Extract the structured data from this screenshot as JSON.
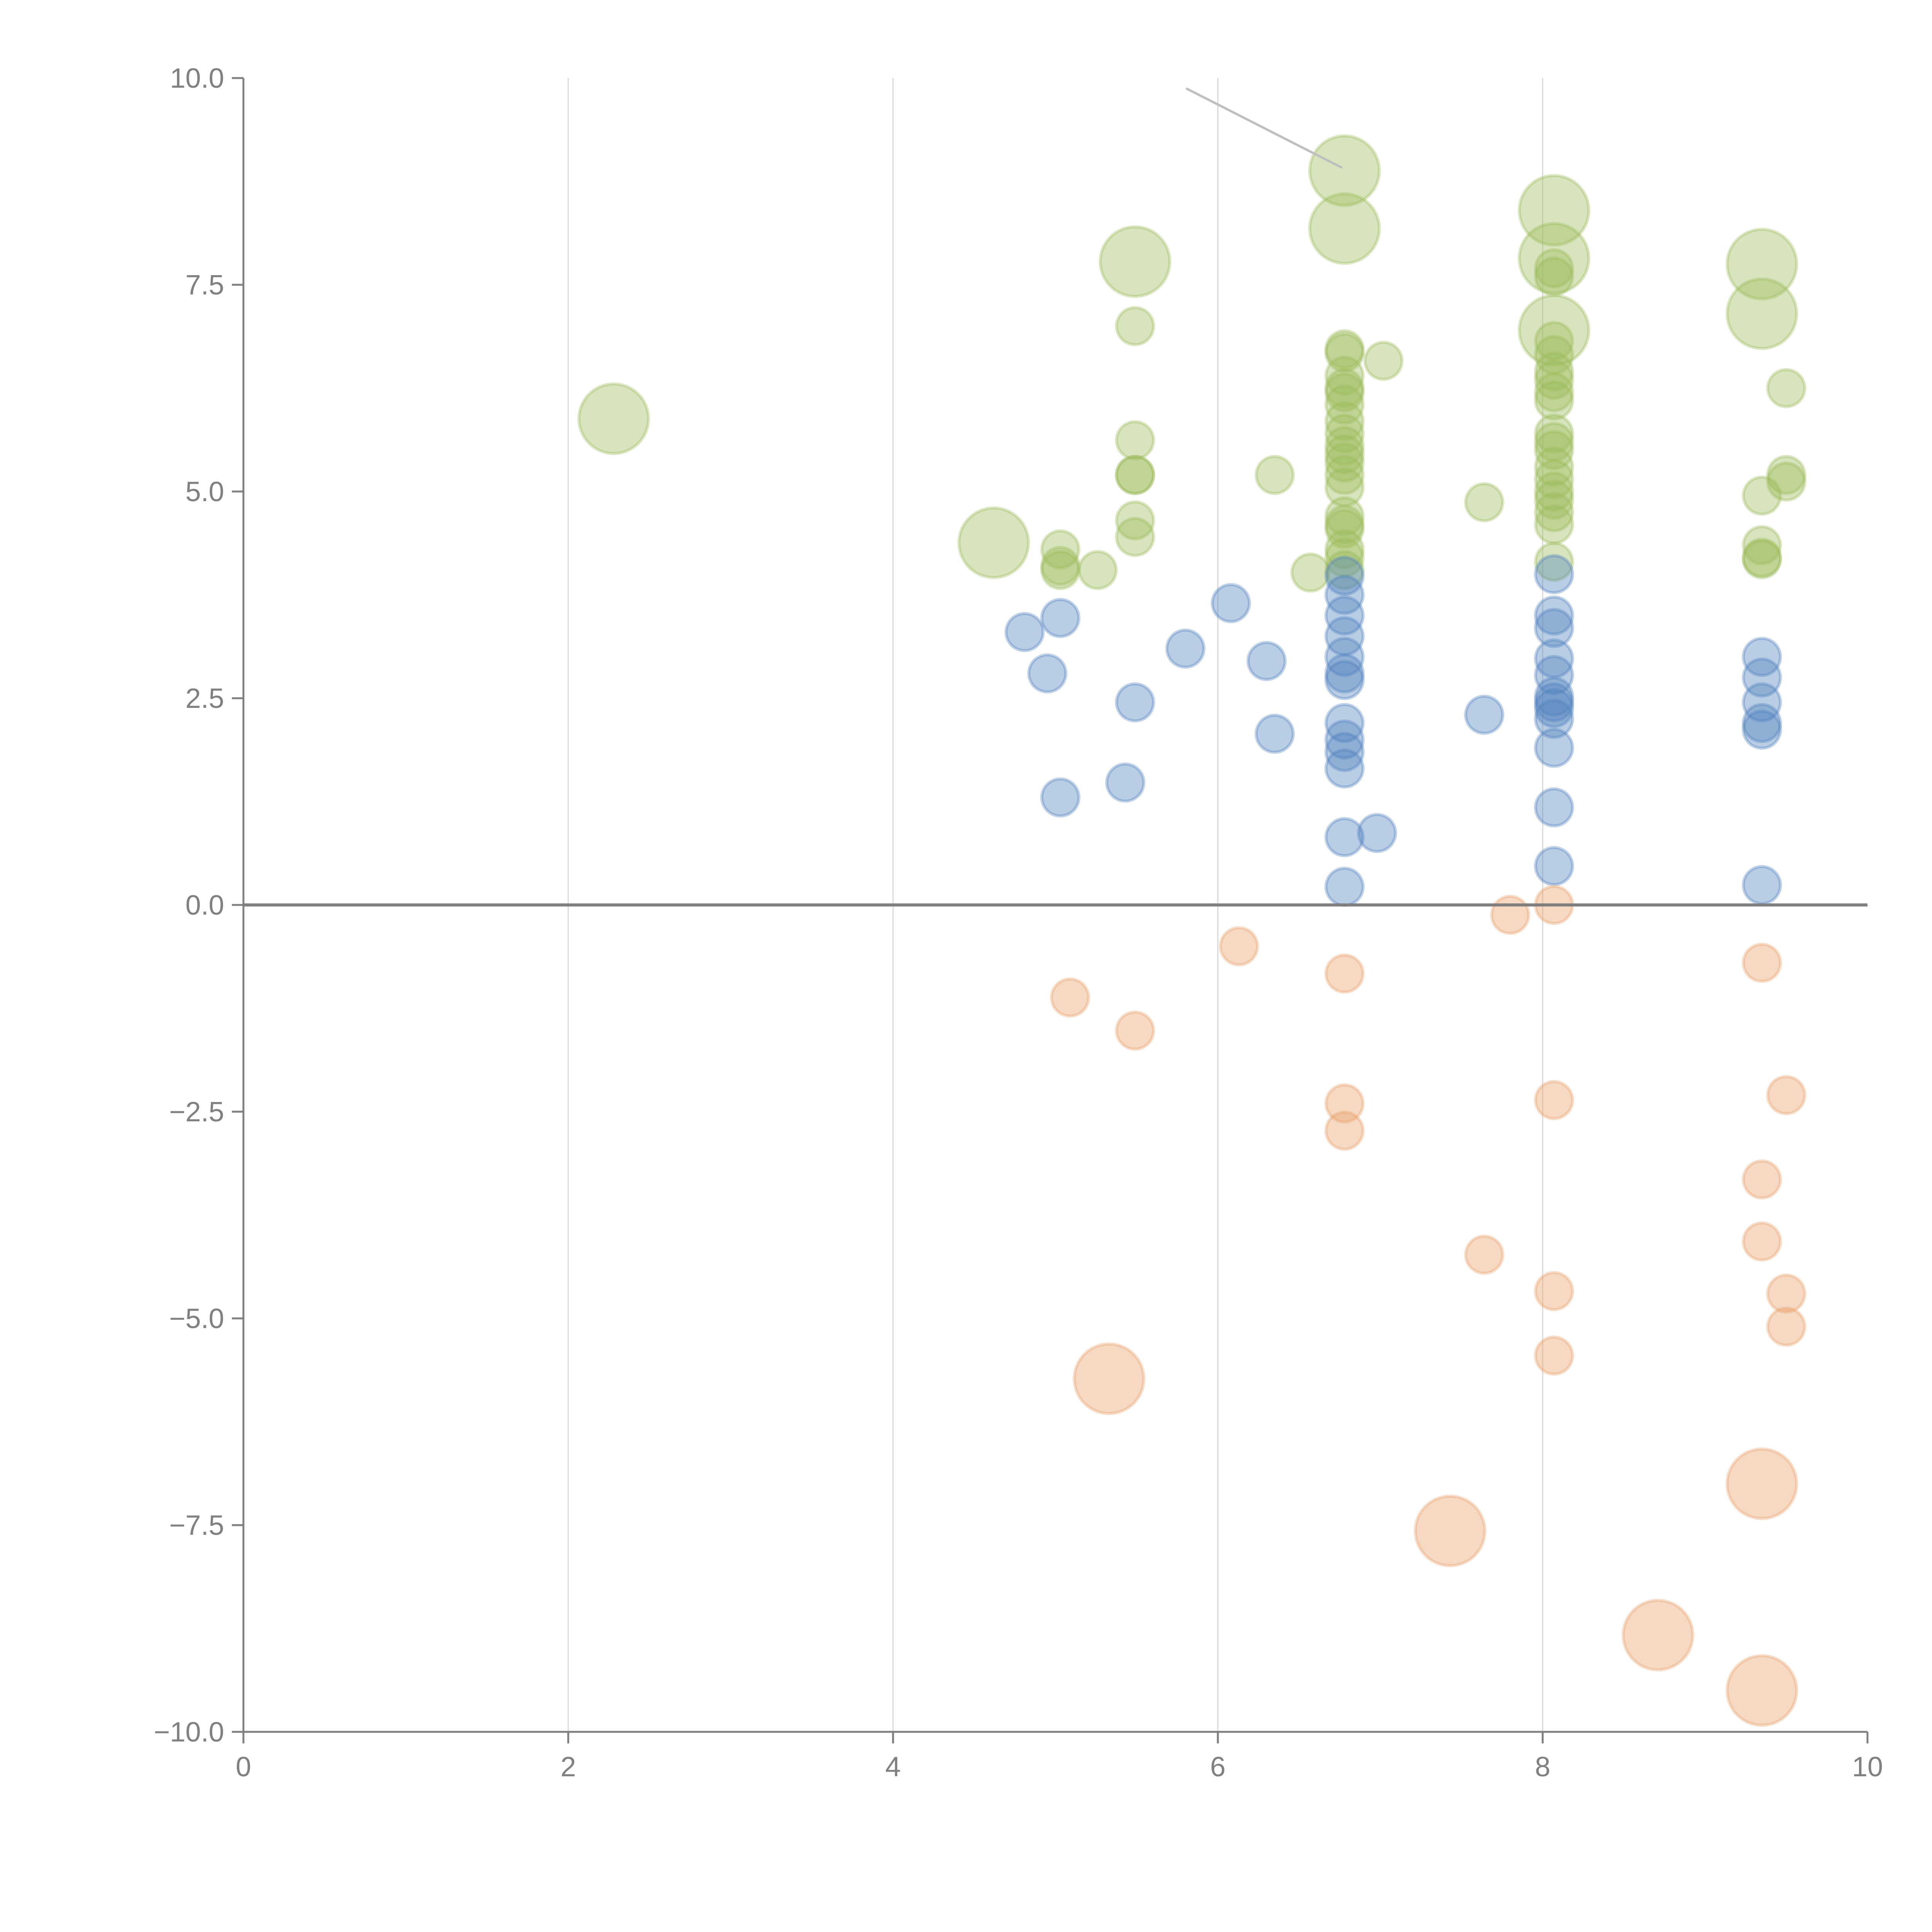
{
  "chart_data": {
    "type": "scatter",
    "subtype": "bubble",
    "title": "",
    "xlabel": "",
    "ylabel": "",
    "xlim": [
      0,
      10
    ],
    "ylim": [
      -10,
      10
    ],
    "x_ticks": [
      "0",
      "2",
      "4",
      "6",
      "8",
      "10"
    ],
    "y_ticks": [
      "10.0",
      "7.5",
      "5.0",
      "2.5",
      "0.0",
      "−2.5",
      "−5.0",
      "−7.5",
      "−10.0"
    ],
    "y_tick_values": [
      10,
      7.5,
      5,
      2.5,
      0,
      -2.5,
      -5,
      -7.5,
      -10
    ],
    "x_tick_values": [
      0,
      2,
      4,
      6,
      8,
      10
    ],
    "grid": "vertical",
    "legend": "none",
    "series": [
      {
        "name": "green",
        "color": "#9bbb59",
        "points": [
          {
            "x": 2.28,
            "y": 5.88,
            "size": 2
          },
          {
            "x": 4.62,
            "y": 4.38,
            "size": 2
          },
          {
            "x": 5.03,
            "y": 4.3,
            "size": 1
          },
          {
            "x": 5.03,
            "y": 4.1,
            "size": 1
          },
          {
            "x": 5.03,
            "y": 4.05,
            "size": 1
          },
          {
            "x": 5.26,
            "y": 4.05,
            "size": 1
          },
          {
            "x": 5.49,
            "y": 7.78,
            "size": 2
          },
          {
            "x": 5.49,
            "y": 7.0,
            "size": 1
          },
          {
            "x": 5.49,
            "y": 5.62,
            "size": 1
          },
          {
            "x": 5.49,
            "y": 5.2,
            "size": 1
          },
          {
            "x": 5.49,
            "y": 5.2,
            "size": 1
          },
          {
            "x": 5.49,
            "y": 4.65,
            "size": 1
          },
          {
            "x": 5.49,
            "y": 4.45,
            "size": 1
          },
          {
            "x": 6.35,
            "y": 5.2,
            "size": 1
          },
          {
            "x": 6.57,
            "y": 4.02,
            "size": 1
          },
          {
            "x": 6.78,
            "y": 8.88,
            "size": 2
          },
          {
            "x": 6.78,
            "y": 8.18,
            "size": 2
          },
          {
            "x": 6.78,
            "y": 6.72,
            "size": 1
          },
          {
            "x": 6.78,
            "y": 6.68,
            "size": 1
          },
          {
            "x": 6.78,
            "y": 6.4,
            "size": 1
          },
          {
            "x": 6.78,
            "y": 6.25,
            "size": 1
          },
          {
            "x": 6.78,
            "y": 6.2,
            "size": 1
          },
          {
            "x": 6.78,
            "y": 6.05,
            "size": 1
          },
          {
            "x": 6.78,
            "y": 5.85,
            "size": 1
          },
          {
            "x": 6.78,
            "y": 5.7,
            "size": 1
          },
          {
            "x": 6.78,
            "y": 5.55,
            "size": 1
          },
          {
            "x": 6.78,
            "y": 5.45,
            "size": 1
          },
          {
            "x": 6.78,
            "y": 5.35,
            "size": 1
          },
          {
            "x": 6.78,
            "y": 5.2,
            "size": 1
          },
          {
            "x": 6.78,
            "y": 5.05,
            "size": 1
          },
          {
            "x": 6.78,
            "y": 4.7,
            "size": 1
          },
          {
            "x": 6.78,
            "y": 4.6,
            "size": 1
          },
          {
            "x": 6.78,
            "y": 4.55,
            "size": 1
          },
          {
            "x": 6.78,
            "y": 4.3,
            "size": 1
          },
          {
            "x": 6.78,
            "y": 4.2,
            "size": 1
          },
          {
            "x": 6.78,
            "y": 4.05,
            "size": 1
          },
          {
            "x": 7.02,
            "y": 6.58,
            "size": 1
          },
          {
            "x": 7.64,
            "y": 4.87,
            "size": 1
          },
          {
            "x": 8.07,
            "y": 8.4,
            "size": 2
          },
          {
            "x": 8.07,
            "y": 7.82,
            "size": 2
          },
          {
            "x": 8.07,
            "y": 7.7,
            "size": 1
          },
          {
            "x": 8.07,
            "y": 7.6,
            "size": 1
          },
          {
            "x": 8.07,
            "y": 6.95,
            "size": 2
          },
          {
            "x": 8.07,
            "y": 6.82,
            "size": 1
          },
          {
            "x": 8.07,
            "y": 6.65,
            "size": 1
          },
          {
            "x": 8.07,
            "y": 6.45,
            "size": 1
          },
          {
            "x": 8.07,
            "y": 6.35,
            "size": 1
          },
          {
            "x": 8.07,
            "y": 6.2,
            "size": 1
          },
          {
            "x": 8.07,
            "y": 6.1,
            "size": 1
          },
          {
            "x": 8.07,
            "y": 5.7,
            "size": 1
          },
          {
            "x": 8.07,
            "y": 5.6,
            "size": 1
          },
          {
            "x": 8.07,
            "y": 5.5,
            "size": 1
          },
          {
            "x": 8.07,
            "y": 5.3,
            "size": 1
          },
          {
            "x": 8.07,
            "y": 5.15,
            "size": 1
          },
          {
            "x": 8.07,
            "y": 5.0,
            "size": 1
          },
          {
            "x": 8.07,
            "y": 4.9,
            "size": 1
          },
          {
            "x": 8.07,
            "y": 4.75,
            "size": 1
          },
          {
            "x": 8.07,
            "y": 4.6,
            "size": 1
          },
          {
            "x": 8.07,
            "y": 4.15,
            "size": 1
          },
          {
            "x": 9.35,
            "y": 7.75,
            "size": 2
          },
          {
            "x": 9.35,
            "y": 7.15,
            "size": 2
          },
          {
            "x": 9.5,
            "y": 6.25,
            "size": 1
          },
          {
            "x": 9.5,
            "y": 5.2,
            "size": 1
          },
          {
            "x": 9.5,
            "y": 5.12,
            "size": 1
          },
          {
            "x": 9.35,
            "y": 4.95,
            "size": 1
          },
          {
            "x": 9.35,
            "y": 4.35,
            "size": 1
          },
          {
            "x": 9.35,
            "y": 4.2,
            "size": 1
          },
          {
            "x": 9.35,
            "y": 4.18,
            "size": 1
          }
        ]
      },
      {
        "name": "blue",
        "color": "#4f81bd",
        "points": [
          {
            "x": 4.81,
            "y": 3.3,
            "size": 1
          },
          {
            "x": 4.95,
            "y": 2.8,
            "size": 1
          },
          {
            "x": 5.03,
            "y": 3.47,
            "size": 1
          },
          {
            "x": 5.03,
            "y": 1.3,
            "size": 1
          },
          {
            "x": 5.43,
            "y": 1.48,
            "size": 1
          },
          {
            "x": 5.49,
            "y": 2.45,
            "size": 1
          },
          {
            "x": 5.8,
            "y": 3.1,
            "size": 1
          },
          {
            "x": 6.08,
            "y": 3.65,
            "size": 1
          },
          {
            "x": 6.3,
            "y": 2.95,
            "size": 1
          },
          {
            "x": 6.35,
            "y": 2.07,
            "size": 1
          },
          {
            "x": 6.78,
            "y": 3.98,
            "size": 1
          },
          {
            "x": 6.78,
            "y": 3.75,
            "size": 1
          },
          {
            "x": 6.78,
            "y": 3.5,
            "size": 1
          },
          {
            "x": 6.78,
            "y": 3.25,
            "size": 1
          },
          {
            "x": 6.78,
            "y": 3.0,
            "size": 1
          },
          {
            "x": 6.78,
            "y": 2.8,
            "size": 1
          },
          {
            "x": 6.78,
            "y": 2.72,
            "size": 1
          },
          {
            "x": 6.78,
            "y": 2.2,
            "size": 1
          },
          {
            "x": 6.78,
            "y": 2.0,
            "size": 1
          },
          {
            "x": 6.78,
            "y": 1.85,
            "size": 1
          },
          {
            "x": 6.78,
            "y": 1.65,
            "size": 1
          },
          {
            "x": 6.78,
            "y": 0.82,
            "size": 1
          },
          {
            "x": 6.98,
            "y": 0.87,
            "size": 1
          },
          {
            "x": 6.78,
            "y": 0.22,
            "size": 1
          },
          {
            "x": 7.64,
            "y": 2.3,
            "size": 1
          },
          {
            "x": 8.07,
            "y": 4.0,
            "size": 1
          },
          {
            "x": 8.07,
            "y": 3.5,
            "size": 1
          },
          {
            "x": 8.07,
            "y": 3.35,
            "size": 1
          },
          {
            "x": 8.07,
            "y": 2.98,
            "size": 1
          },
          {
            "x": 8.07,
            "y": 2.78,
            "size": 1
          },
          {
            "x": 8.07,
            "y": 2.52,
            "size": 1
          },
          {
            "x": 8.07,
            "y": 2.45,
            "size": 1
          },
          {
            "x": 8.07,
            "y": 2.38,
            "size": 1
          },
          {
            "x": 8.07,
            "y": 2.25,
            "size": 1
          },
          {
            "x": 8.07,
            "y": 1.9,
            "size": 1
          },
          {
            "x": 8.07,
            "y": 1.18,
            "size": 1
          },
          {
            "x": 8.07,
            "y": 0.47,
            "size": 1
          },
          {
            "x": 9.35,
            "y": 3.0,
            "size": 1
          },
          {
            "x": 9.35,
            "y": 2.75,
            "size": 1
          },
          {
            "x": 9.35,
            "y": 2.45,
            "size": 1
          },
          {
            "x": 9.35,
            "y": 2.2,
            "size": 1
          },
          {
            "x": 9.35,
            "y": 2.12,
            "size": 1
          },
          {
            "x": 9.35,
            "y": 0.24,
            "size": 1
          }
        ]
      },
      {
        "name": "orange",
        "color": "#e8a068",
        "points": [
          {
            "x": 5.09,
            "y": -1.12,
            "size": 1
          },
          {
            "x": 5.49,
            "y": -1.52,
            "size": 1
          },
          {
            "x": 5.33,
            "y": -5.73,
            "size": 2
          },
          {
            "x": 6.13,
            "y": -0.5,
            "size": 1
          },
          {
            "x": 6.78,
            "y": -0.83,
            "size": 1
          },
          {
            "x": 6.78,
            "y": -2.4,
            "size": 1
          },
          {
            "x": 6.78,
            "y": -2.73,
            "size": 1
          },
          {
            "x": 7.43,
            "y": -7.57,
            "size": 2
          },
          {
            "x": 7.64,
            "y": -4.23,
            "size": 1
          },
          {
            "x": 7.8,
            "y": -0.12,
            "size": 1
          },
          {
            "x": 8.07,
            "y": 0.0,
            "size": 1
          },
          {
            "x": 8.07,
            "y": -2.36,
            "size": 1
          },
          {
            "x": 8.07,
            "y": -4.67,
            "size": 1
          },
          {
            "x": 8.07,
            "y": -5.45,
            "size": 1
          },
          {
            "x": 8.71,
            "y": -8.83,
            "size": 2
          },
          {
            "x": 9.35,
            "y": -0.7,
            "size": 1
          },
          {
            "x": 9.35,
            "y": -3.32,
            "size": 1
          },
          {
            "x": 9.35,
            "y": -4.07,
            "size": 1
          },
          {
            "x": 9.35,
            "y": -7.0,
            "size": 2
          },
          {
            "x": 9.35,
            "y": -9.5,
            "size": 2
          },
          {
            "x": 9.5,
            "y": -2.3,
            "size": 1
          },
          {
            "x": 9.5,
            "y": -4.7,
            "size": 1
          },
          {
            "x": 9.5,
            "y": -5.1,
            "size": 1
          }
        ]
      }
    ],
    "annotations": [
      {
        "type": "leader-line",
        "from": {
          "x": 5.81,
          "y": 9.87
        },
        "to": {
          "x": 6.76,
          "y": 8.92
        },
        "color": "#bfbfbf"
      }
    ]
  }
}
